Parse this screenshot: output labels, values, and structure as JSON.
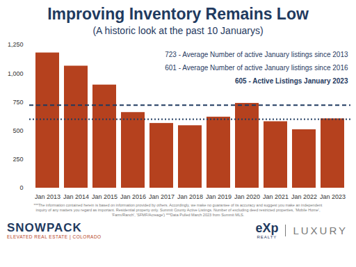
{
  "chart_data": {
    "type": "bar",
    "title": "Improving Inventory Remains Low",
    "subtitle": "(A historic look at the past 10 Januarys)",
    "categories": [
      "Jan 2013",
      "Jan 2014",
      "Jan 2015",
      "Jan 2016",
      "Jan 2017",
      "Jan 2018",
      "Jan 2019",
      "Jan 2020",
      "Jan 2021",
      "Jan 2022",
      "Jan 2023"
    ],
    "values": [
      1180,
      1065,
      900,
      660,
      565,
      545,
      620,
      740,
      580,
      510,
      605
    ],
    "color": "#b5411e",
    "ylim": [
      0,
      1250
    ],
    "yticks": [
      0,
      250,
      500,
      750,
      {
        "value": 1000,
        "label": "1,000"
      },
      {
        "value": 1250,
        "label": "1,250"
      }
    ],
    "grid": false,
    "reference_lines": [
      {
        "value": 723,
        "label": "723 - Average Number of active January listings since 2013",
        "line_style": "dashed",
        "color": "#1f3a5f"
      },
      {
        "value": 601,
        "label": "601 - Average Number of active January listings since 2016",
        "line_style": "dotted",
        "color": "#1f3a5f"
      }
    ],
    "annotations": [
      "605 - Active Listings January 2023"
    ]
  },
  "footnote": "***The information contained herein is based on information provided by others. Accordingly, we make no guarantee of its accuracy and suggest you make an independent inquiry of any matters you regard as important. Residential property only. Summit County Active Listings. Number of excluding deed restricted properties, 'Mobile Home', 'Farm/Ranch', 'SFMF/Acreage') ***Data Pulled March 2023 from Summit MLS.",
  "branding": {
    "left": "SNOWPACK",
    "left_sub": "ELEVATED REAL ESTATE | COLORADO",
    "middle": "eXp",
    "middle_sub": "REALTY",
    "right": "LUXURY"
  }
}
